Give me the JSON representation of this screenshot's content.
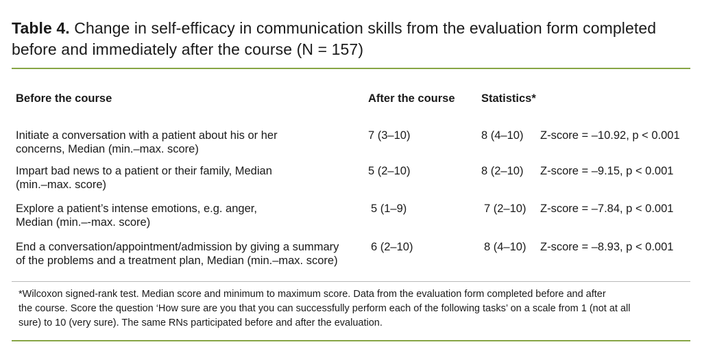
{
  "caption": {
    "label": "Table 4.",
    "text": " Change in self-efficacy in communication skills from the evaluation form completed before and immediately after the course (N = 157)"
  },
  "table": {
    "headers": [
      "Before the course",
      "After the course",
      "Statistics*"
    ],
    "rows": [
      {
        "item_line1": "Initiate a conversation with a patient about his or her",
        "item_line2": "concerns, Median (min.–max. score)",
        "before": "7 (3–10)",
        "after": "8 (4–10)",
        "statistics": "Z-score = –10.92, p < 0.001"
      },
      {
        "item_line1": "Impart bad news to a patient or their family, Median",
        "item_line2": "(min.–max. score)",
        "before": "5 (2–10)",
        "after": "8 (2–10)",
        "statistics": "Z-score = –9.15, p < 0.001"
      },
      {
        "item_line1": "Explore a patient’s intense emotions, e.g. anger,",
        "item_line2": "Median (min.–-max. score)",
        "before": "5 (1–9)",
        "after": "7 (2–10)",
        "statistics": "Z-score = –7.84, p < 0.001"
      },
      {
        "item_line1": "End a conversation/appointment/admission by giving a summary",
        "item_line2": "of the problems and a treatment plan, Median (min.–max. score)",
        "before": "6 (2–10)",
        "after": "8 (4–10)",
        "statistics": "Z-score = –8.93, p < 0.001"
      }
    ]
  },
  "footnote": {
    "line1": "*Wilcoxon signed-rank test. Median score and minimum to maximum score. Data from the evaluation form completed before and after",
    "line2": "the course. Score the question ‘How sure are you that you can successfully perform each of the following tasks’ on a scale from 1 (not at all",
    "line3": "sure) to 10 (very sure). The same RNs participated before and after the evaluation."
  },
  "colors": {
    "rule": "#86a544",
    "thin_rule": "#b9b9b9",
    "text": "#1a1a1a"
  }
}
